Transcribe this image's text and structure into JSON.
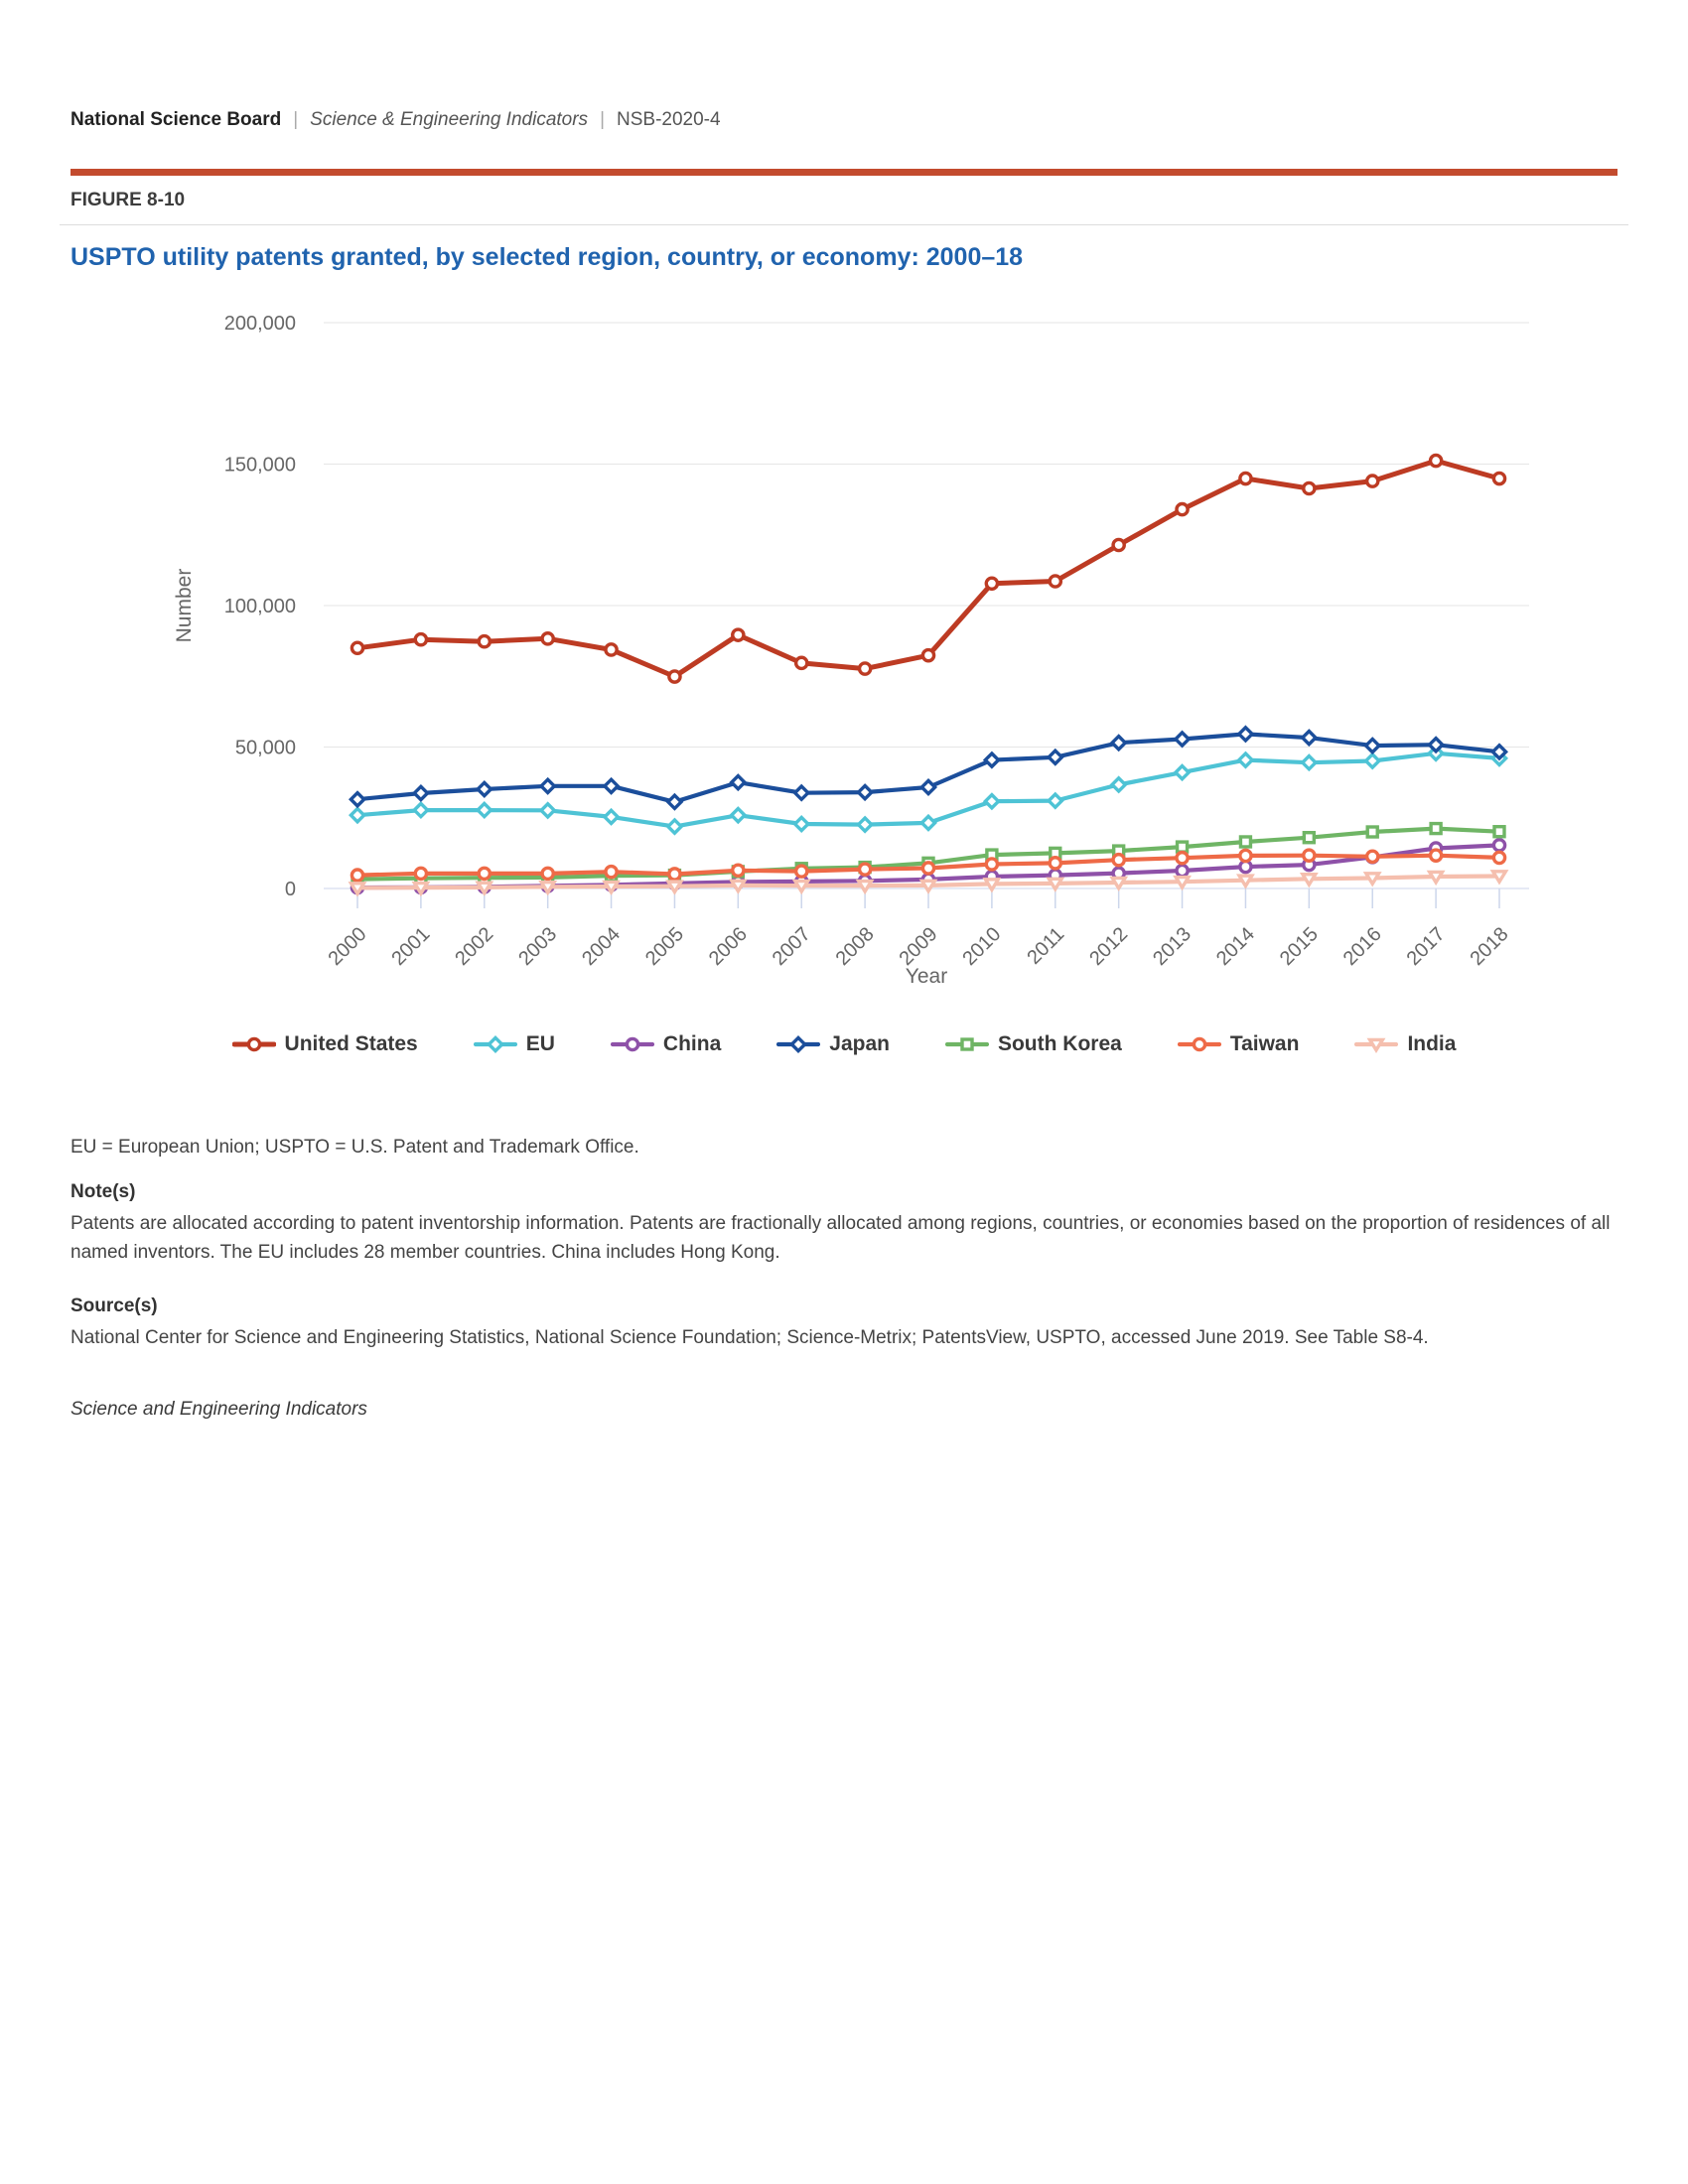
{
  "page": {
    "header": {
      "brand": "National Science Board",
      "separator": "|",
      "publication": "Science & Engineering Indicators",
      "report_id": "NSB-2020-4"
    },
    "figure_label": "FIGURE 8-10",
    "title": "USPTO utility patents granted, by selected region, country, or economy: 2000–18",
    "footer": {
      "abbreviations": "EU = European Union; USPTO = U.S. Patent and Trademark Office.",
      "notes_label": "Note(s)",
      "notes": "Patents are allocated according to patent inventorship information. Patents are fractionally allocated among regions, countries, or economies based on the proportion of residences of all named inventors. The EU includes 28 member countries. China includes Hong Kong.",
      "source_label": "Source(s)",
      "source": "National Center for Science and Engineering Statistics, National Science Foundation; Science-Metrix; PatentsView, USPTO, accessed June 2019. See Table S8-4.",
      "credit": "Science and Engineering Indicators"
    },
    "colors": {
      "accent_bar": "#c34b2e",
      "title": "#2063ae",
      "axis_text": "#666666",
      "grid": "#e6e6e6",
      "axis_line": "#ccd6eb",
      "legend_text": "#3a3a3a"
    }
  },
  "chart_data": {
    "type": "line",
    "title": "USPTO utility patents granted, by selected region, country, or economy: 2000–18",
    "xlabel": "Year",
    "ylabel": "Number",
    "ylim": [
      0,
      200000
    ],
    "grid": true,
    "legend_position": "bottom",
    "yticks": [
      {
        "value": 0,
        "label": "0"
      },
      {
        "value": 50000,
        "label": "50,000"
      },
      {
        "value": 100000,
        "label": "100,000"
      },
      {
        "value": 150000,
        "label": "150,000"
      },
      {
        "value": 200000,
        "label": "200,000"
      }
    ],
    "x": [
      2000,
      2001,
      2002,
      2003,
      2004,
      2005,
      2006,
      2007,
      2008,
      2009,
      2010,
      2011,
      2012,
      2013,
      2014,
      2015,
      2016,
      2017,
      2018
    ],
    "series": [
      {
        "name": "United States",
        "color": "#bd3b23",
        "marker": "circle",
        "values": [
          85000,
          88000,
          87300,
          88300,
          84400,
          74900,
          89600,
          79700,
          77700,
          82400,
          107800,
          108600,
          121400,
          134000,
          144900,
          141400,
          144000,
          151200,
          144900
        ]
      },
      {
        "name": "EU",
        "color": "#4ec3d5",
        "marker": "diamond",
        "values": [
          25900,
          27700,
          27700,
          27600,
          25300,
          21900,
          25900,
          22800,
          22600,
          23200,
          30800,
          31000,
          36700,
          41000,
          45400,
          44500,
          45100,
          47800,
          46000
        ]
      },
      {
        "name": "China",
        "color": "#8e51a8",
        "marker": "circle",
        "values": [
          300,
          400,
          600,
          900,
          1300,
          1800,
          2300,
          2500,
          2700,
          3200,
          4200,
          4700,
          5400,
          6300,
          7700,
          8400,
          11100,
          14200,
          15300
        ]
      },
      {
        "name": "Japan",
        "color": "#1b4e9b",
        "marker": "diamond",
        "values": [
          31500,
          33700,
          35100,
          36200,
          36200,
          30600,
          37500,
          33800,
          34000,
          35800,
          45400,
          46400,
          51500,
          52800,
          54600,
          53300,
          50500,
          50800,
          48300
        ]
      },
      {
        "name": "South Korea",
        "color": "#6fb565",
        "marker": "square",
        "values": [
          3300,
          3600,
          3800,
          3900,
          4500,
          4700,
          6000,
          7100,
          7500,
          9000,
          11900,
          12500,
          13300,
          14700,
          16500,
          18000,
          20000,
          21200,
          20100
        ]
      },
      {
        "name": "Taiwan",
        "color": "#ee6a47",
        "marker": "circle",
        "values": [
          4700,
          5300,
          5300,
          5300,
          5900,
          5100,
          6400,
          6100,
          6800,
          7200,
          8600,
          9000,
          10100,
          10800,
          11600,
          11700,
          11300,
          11700,
          10900
        ]
      },
      {
        "name": "India",
        "color": "#f5bfae",
        "marker": "triangle-down",
        "values": [
          200,
          300,
          400,
          600,
          700,
          800,
          1100,
          1000,
          1000,
          1100,
          1600,
          1800,
          2100,
          2400,
          2900,
          3400,
          3700,
          4200,
          4400
        ]
      }
    ]
  }
}
